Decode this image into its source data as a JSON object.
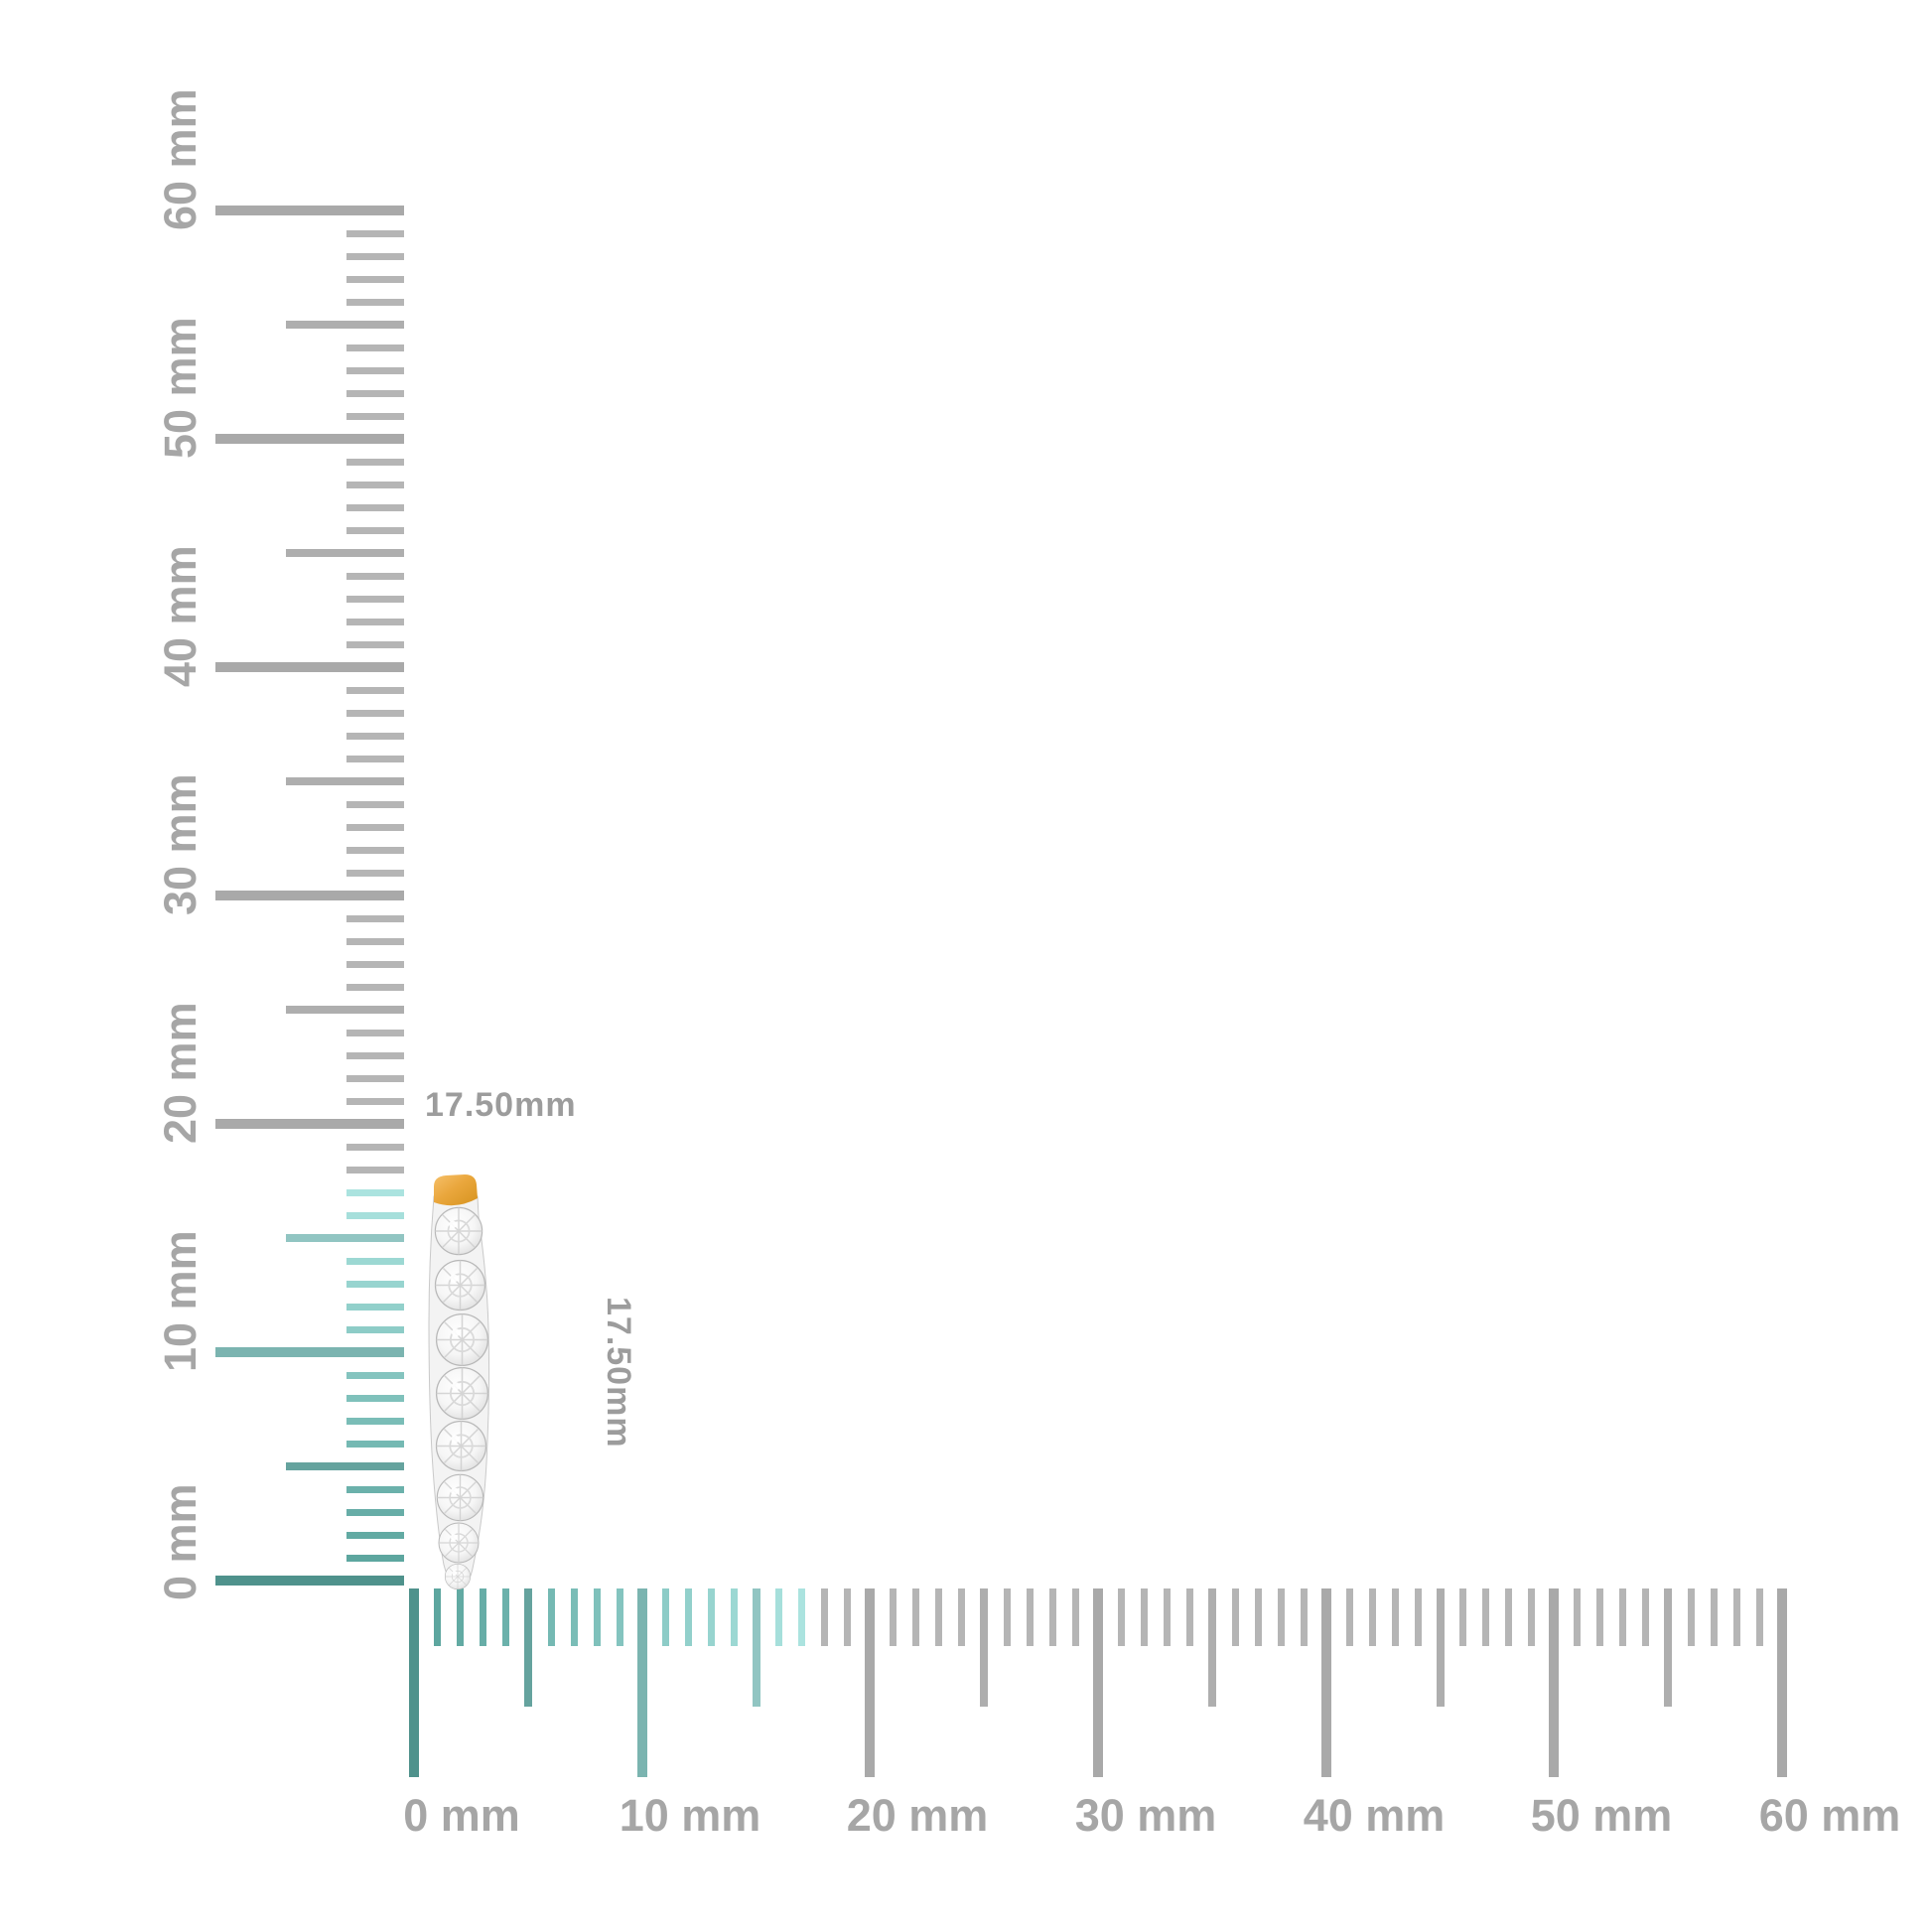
{
  "item": {
    "name": "gold-diamond-hoop-earring",
    "metal_color": "#eaa73d",
    "metal_color_dark": "#d6931f",
    "metal_highlight": "#f6c06a",
    "stone_color": "#f4f4f4"
  },
  "dimension_labels": {
    "width_label": "17.50mm",
    "height_label": "17.50mm",
    "color": "#9c9c9c"
  },
  "rulers": {
    "unit": "mm",
    "max_mm": 60,
    "minor_step_mm": 1,
    "medium_step_mm": 5,
    "major_step_mm": 10,
    "highlight_extent_mm": 17.5,
    "colors": {
      "gray_minor": "#b5b5b5",
      "gray_medium": "#aeaeae",
      "gray_major": "#a9a9a9",
      "teal_dark": "#58a29b",
      "teal_light": "#ade5e1",
      "label_gray": "#a6a6a6"
    },
    "vertical_labels": [
      {
        "mm": 0,
        "text": "0 mm"
      },
      {
        "mm": 10,
        "text": "10 mm"
      },
      {
        "mm": 20,
        "text": "20 mm"
      },
      {
        "mm": 30,
        "text": "30 mm"
      },
      {
        "mm": 40,
        "text": "40 mm"
      },
      {
        "mm": 50,
        "text": "50 mm"
      },
      {
        "mm": 60,
        "text": "60 mm"
      }
    ],
    "horizontal_labels": [
      {
        "mm": 0,
        "text": "0 mm"
      },
      {
        "mm": 10,
        "text": "10 mm"
      },
      {
        "mm": 20,
        "text": "20 mm"
      },
      {
        "mm": 30,
        "text": "30 mm"
      },
      {
        "mm": 40,
        "text": "40 mm"
      },
      {
        "mm": 50,
        "text": "50 mm"
      },
      {
        "mm": 60,
        "text": "60 mm"
      }
    ]
  }
}
